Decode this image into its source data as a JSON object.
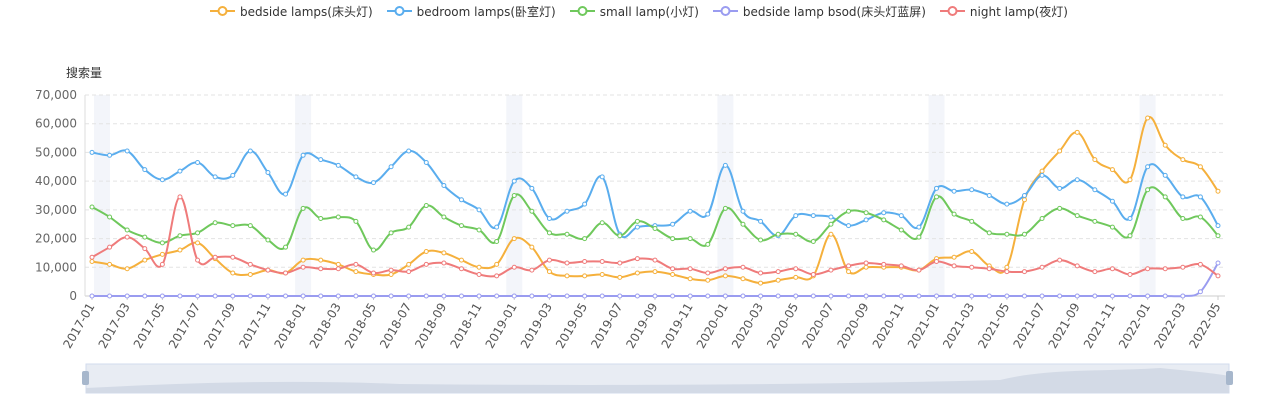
{
  "chart_data": {
    "type": "line",
    "y_axis_label": "搜索量",
    "categories": [
      "2017-01",
      null,
      "2017-03",
      null,
      "2017-05",
      null,
      "2017-07",
      null,
      "2017-09",
      null,
      "2017-11",
      null,
      "2018-01",
      null,
      "2018-03",
      null,
      "2018-05",
      null,
      "2018-07",
      null,
      "2018-09",
      null,
      "2018-11",
      null,
      "2019-01",
      null,
      "2019-03",
      null,
      "2019-05",
      null,
      "2019-07",
      null,
      "2019-09",
      null,
      "2019-11",
      null,
      "2020-01",
      null,
      "2020-03",
      null,
      "2020-05",
      null,
      "2020-07",
      null,
      "2020-09",
      null,
      "2020-11",
      null,
      "2021-01",
      null,
      "2021-03",
      null,
      "2021-05",
      null,
      "2021-07",
      null,
      "2021-09",
      null,
      "2021-11",
      null,
      "2022-01",
      null,
      "2022-03",
      null,
      "2022-05"
    ],
    "series": [
      {
        "name": "bedside lamps(床头灯)",
        "color": "#f5b03c",
        "values": [
          12000,
          11000,
          9500,
          12500,
          14500,
          16000,
          18500,
          13000,
          8000,
          7500,
          9000,
          8000,
          12500,
          12500,
          11000,
          8500,
          7500,
          7500,
          11000,
          15500,
          15000,
          12500,
          10000,
          11000,
          20000,
          17000,
          8500,
          7000,
          7000,
          7500,
          6500,
          8000,
          8500,
          7500,
          6000,
          5500,
          7000,
          6000,
          4500,
          5500,
          6500,
          7000,
          21500,
          8500,
          10000,
          10000,
          10000,
          9000,
          13000,
          13500,
          15500,
          10500,
          10000,
          33500,
          43500,
          50500,
          57000,
          47500,
          44000,
          40500,
          62000,
          52500,
          47500,
          45000,
          36500
        ]
      },
      {
        "name": "bedroom lamps(卧室灯)",
        "color": "#5aadee",
        "values": [
          50000,
          49000,
          50500,
          44000,
          40500,
          43500,
          46500,
          41500,
          42000,
          50500,
          43000,
          35500,
          49000,
          47500,
          45500,
          41500,
          39500,
          45000,
          50500,
          46500,
          38500,
          33500,
          30000,
          24000,
          40000,
          37500,
          27000,
          29500,
          32000,
          41500,
          21500,
          24000,
          24500,
          25000,
          29500,
          28500,
          45500,
          29500,
          26000,
          21000,
          28000,
          28000,
          27500,
          24500,
          26500,
          29000,
          28000,
          24000,
          37500,
          36500,
          37000,
          35000,
          32000,
          35000,
          42000,
          37500,
          40500,
          37000,
          33000,
          27000,
          45000,
          42000,
          34500,
          34500,
          24500
        ]
      },
      {
        "name": "small lamp(小灯)",
        "color": "#6fc85c",
        "values": [
          31000,
          27500,
          23000,
          20500,
          18500,
          21000,
          22000,
          25500,
          24500,
          24500,
          19500,
          17000,
          30500,
          27000,
          27500,
          26000,
          16000,
          22000,
          24000,
          31500,
          27500,
          24500,
          23000,
          19000,
          35000,
          29500,
          22000,
          21500,
          20000,
          25500,
          21000,
          26000,
          23500,
          20000,
          20000,
          18000,
          30500,
          25000,
          19500,
          21500,
          21500,
          19000,
          25000,
          29500,
          29000,
          26500,
          23000,
          20500,
          34500,
          28500,
          26000,
          22000,
          21500,
          21500,
          27000,
          30500,
          28000,
          26000,
          24000,
          21000,
          37000,
          34500,
          27000,
          27500,
          21000
        ]
      },
      {
        "name": "bedside lamp bsod(床头灯蓝屏)",
        "color": "#9a9cf0",
        "values": [
          0,
          0,
          0,
          0,
          0,
          0,
          0,
          0,
          0,
          0,
          0,
          0,
          0,
          0,
          0,
          0,
          0,
          0,
          0,
          0,
          0,
          0,
          0,
          0,
          0,
          0,
          0,
          0,
          0,
          0,
          0,
          0,
          0,
          0,
          0,
          0,
          0,
          0,
          0,
          0,
          0,
          0,
          0,
          0,
          0,
          0,
          0,
          0,
          0,
          0,
          0,
          0,
          0,
          0,
          0,
          0,
          0,
          0,
          0,
          0,
          0,
          0,
          0,
          1500,
          11500
        ]
      },
      {
        "name": "night lamp(夜灯)",
        "color": "#ef7b7b",
        "values": [
          13500,
          17000,
          20500,
          16500,
          11000,
          34500,
          12500,
          13500,
          13500,
          11000,
          9000,
          8000,
          10000,
          9500,
          9500,
          11000,
          8000,
          9000,
          8500,
          11000,
          11500,
          9500,
          7500,
          7000,
          10000,
          9000,
          12500,
          11500,
          12000,
          12000,
          11500,
          13000,
          12500,
          9500,
          9500,
          8000,
          9500,
          10000,
          8000,
          8500,
          9500,
          7500,
          9000,
          10500,
          11500,
          11000,
          10500,
          9000,
          12000,
          10500,
          10000,
          9500,
          8500,
          8500,
          10000,
          12500,
          10500,
          8500,
          9500,
          7500,
          9500,
          9500,
          10000,
          11000,
          7000
        ]
      }
    ],
    "ylim": [
      0,
      70000
    ],
    "yticks": [
      0,
      {
        "value": 10000,
        "label": "10,000"
      },
      {
        "value": 20000,
        "label": "20,000"
      },
      {
        "value": 30000,
        "label": "30,000"
      },
      {
        "value": 40000,
        "label": "40,000"
      },
      {
        "value": 50000,
        "label": "50,000"
      },
      {
        "value": 60000,
        "label": "60,000"
      },
      {
        "value": 70000,
        "label": "70,000"
      }
    ],
    "grid": true
  }
}
